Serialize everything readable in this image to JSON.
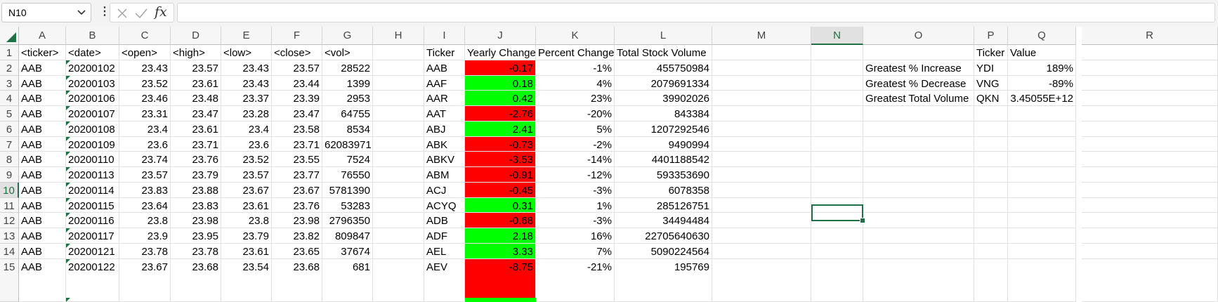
{
  "formula_bar": {
    "name_box": "N10",
    "formula": ""
  },
  "colors": {
    "accent": "#1e7145",
    "negative": "#ff0000",
    "positive": "#00ff00"
  },
  "columns": [
    "A",
    "B",
    "C",
    "D",
    "E",
    "F",
    "G",
    "H",
    "I",
    "J",
    "K",
    "L",
    "M",
    "N",
    "O",
    "P",
    "Q",
    "R"
  ],
  "rows": [
    "1",
    "2",
    "3",
    "4",
    "5",
    "6",
    "7",
    "8",
    "9",
    "10",
    "11",
    "12",
    "13",
    "14",
    "15"
  ],
  "headers": [
    "<ticker>",
    "<date>",
    "<open>",
    "<high>",
    "<low>",
    "<close>",
    "<vol>"
  ],
  "data": [
    [
      "AAB",
      "20200102",
      "23.43",
      "23.57",
      "23.43",
      "23.57",
      "28522"
    ],
    [
      "AAB",
      "20200103",
      "23.52",
      "23.61",
      "23.43",
      "23.44",
      "1399"
    ],
    [
      "AAB",
      "20200106",
      "23.46",
      "23.48",
      "23.37",
      "23.39",
      "2953"
    ],
    [
      "AAB",
      "20200107",
      "23.31",
      "23.47",
      "23.28",
      "23.47",
      "64755"
    ],
    [
      "AAB",
      "20200108",
      "23.4",
      "23.61",
      "23.4",
      "23.58",
      "8534"
    ],
    [
      "AAB",
      "20200109",
      "23.6",
      "23.71",
      "23.6",
      "23.71",
      "62083971"
    ],
    [
      "AAB",
      "20200110",
      "23.74",
      "23.76",
      "23.52",
      "23.55",
      "7524"
    ],
    [
      "AAB",
      "20200113",
      "23.57",
      "23.79",
      "23.57",
      "23.77",
      "76550"
    ],
    [
      "AAB",
      "20200114",
      "23.83",
      "23.88",
      "23.67",
      "23.67",
      "5781390"
    ],
    [
      "AAB",
      "20200115",
      "23.64",
      "23.83",
      "23.61",
      "23.76",
      "53283"
    ],
    [
      "AAB",
      "20200116",
      "23.8",
      "23.98",
      "23.8",
      "23.98",
      "2796350"
    ],
    [
      "AAB",
      "20200117",
      "23.9",
      "23.95",
      "23.79",
      "23.82",
      "809847"
    ],
    [
      "AAB",
      "20200121",
      "23.78",
      "23.78",
      "23.61",
      "23.65",
      "37674"
    ],
    [
      "AAB",
      "20200122",
      "23.67",
      "23.68",
      "23.54",
      "23.68",
      "681"
    ]
  ],
  "summary_headers": [
    "Ticker",
    "Yearly Change",
    "Percent Change",
    "Total Stock Volume"
  ],
  "summary": [
    [
      "AAB",
      "-0.17",
      "-1%",
      "455750984"
    ],
    [
      "AAF",
      "0.18",
      "4%",
      "2079691334"
    ],
    [
      "AAR",
      "0.42",
      "23%",
      "39902026"
    ],
    [
      "AAT",
      "-2.76",
      "-20%",
      "843384"
    ],
    [
      "ABJ",
      "2.41",
      "5%",
      "1207292546"
    ],
    [
      "ABK",
      "-0.73",
      "-2%",
      "9490994"
    ],
    [
      "ABKV",
      "-3.53",
      "-14%",
      "4401188542"
    ],
    [
      "ABM",
      "-0.91",
      "-12%",
      "593353690"
    ],
    [
      "ACJ",
      "-0.45",
      "-3%",
      "6078358"
    ],
    [
      "ACYQ",
      "0.31",
      "1%",
      "285126751"
    ],
    [
      "ADB",
      "-0.68",
      "-3%",
      "34494484"
    ],
    [
      "ADF",
      "2.18",
      "16%",
      "22705640630"
    ],
    [
      "AEL",
      "3.33",
      "7%",
      "5090224564"
    ],
    [
      "AEV",
      "-8.75",
      "-21%",
      "195769"
    ]
  ],
  "greatest": {
    "headers": [
      "Ticker",
      "Value"
    ],
    "rows": [
      [
        "Greatest % Increase",
        "YDI",
        "189%"
      ],
      [
        "Greatest % Decrease",
        "VNG",
        "-89%"
      ],
      [
        "Greatest Total Volume",
        "QKN",
        "3.45055E+12"
      ]
    ]
  }
}
